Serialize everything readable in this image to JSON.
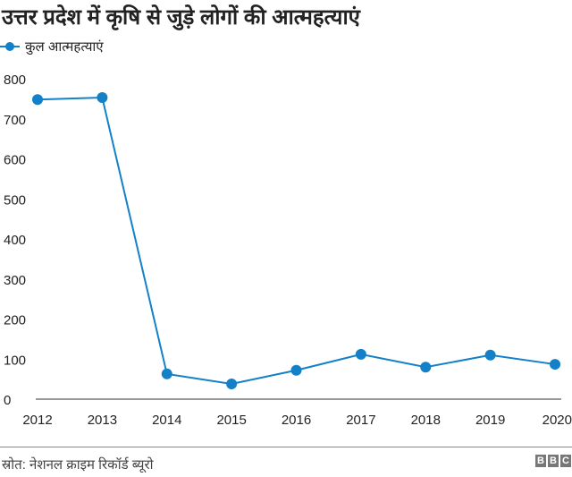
{
  "chart_data": {
    "type": "line",
    "title": "उत्तर प्रदेश में कृषि से जुड़े लोगों की आत्महत्याएं",
    "xlabel": "",
    "ylabel": "",
    "x": [
      "2012",
      "2013",
      "2014",
      "2015",
      "2016",
      "2017",
      "2018",
      "2019",
      "2020"
    ],
    "series": [
      {
        "name": "कुल आत्महत्याएं",
        "color": "#1380c8",
        "values": [
          748,
          753,
          63,
          38,
          72,
          112,
          80,
          110,
          87
        ]
      }
    ],
    "ylim": [
      0,
      800
    ],
    "yticks": [
      0,
      100,
      200,
      300,
      400,
      500,
      600,
      700,
      800
    ],
    "grid": false,
    "legend": "top-left"
  },
  "footer": {
    "source": "स्रोत: नेशनल क्राइम रिकॉर्ड ब्यूरो",
    "logo": [
      "B",
      "B",
      "C"
    ]
  }
}
